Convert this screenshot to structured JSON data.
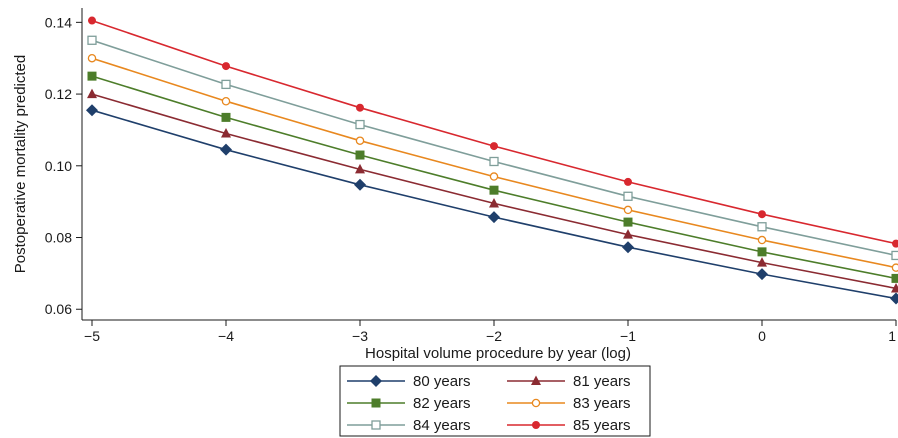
{
  "chart_data": {
    "type": "line",
    "title": "",
    "xlabel": "Hospital volume procedure by year (log)",
    "ylabel": "Postoperative mortality predicted",
    "xlim": [
      -5,
      1
    ],
    "ylim": [
      0.057,
      0.144
    ],
    "xticks": [
      -5,
      -4,
      -3,
      -2,
      -1,
      0,
      1
    ],
    "xtick_labels": [
      "−5",
      "−4",
      "−3",
      "−2",
      "−1",
      "0",
      "1"
    ],
    "yticks": [
      0.06,
      0.08,
      0.1,
      0.12,
      0.14
    ],
    "ytick_labels": [
      "0.06",
      "0.08",
      "0.10",
      "0.12",
      "0.14"
    ],
    "grid": false,
    "legend_position": "bottom-center",
    "x": [
      -5,
      -4,
      -3,
      -2,
      -1,
      0,
      1
    ],
    "series": [
      {
        "name": "80 years",
        "color": "#1f3f6b",
        "marker": "diamond",
        "values": [
          0.1155,
          0.1045,
          0.0947,
          0.0857,
          0.0773,
          0.0698,
          0.063
        ]
      },
      {
        "name": "81 years",
        "color": "#8b2b32",
        "marker": "triangle",
        "values": [
          0.12,
          0.109,
          0.099,
          0.0895,
          0.0808,
          0.073,
          0.0658
        ]
      },
      {
        "name": "82 years",
        "color": "#4d7d2a",
        "marker": "square",
        "values": [
          0.125,
          0.1135,
          0.103,
          0.0932,
          0.0843,
          0.076,
          0.0686
        ]
      },
      {
        "name": "83 years",
        "color": "#e8881f",
        "marker": "circle-open",
        "values": [
          0.13,
          0.118,
          0.107,
          0.097,
          0.0877,
          0.0793,
          0.0716
        ]
      },
      {
        "name": "84 years",
        "color": "#7f9e9a",
        "marker": "square-open",
        "values": [
          0.135,
          0.1227,
          0.1115,
          0.1012,
          0.0915,
          0.083,
          0.075
        ]
      },
      {
        "name": "85 years",
        "color": "#d8282f",
        "marker": "circle",
        "values": [
          0.1405,
          0.1278,
          0.1162,
          0.1055,
          0.0955,
          0.0865,
          0.0783
        ]
      }
    ]
  }
}
